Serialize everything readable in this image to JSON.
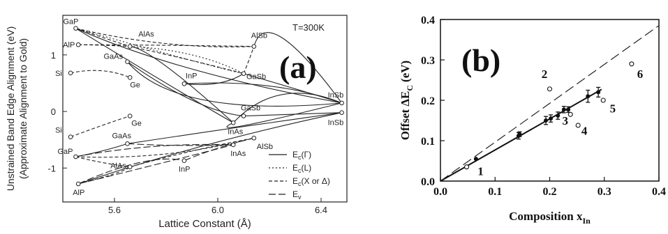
{
  "chart_data": [
    {
      "panel_label": "(a)",
      "type": "line",
      "xlabel": "Lattice Constant (Å)",
      "ylabel_line1": "Unstrained Band Edge Alignment (eV)",
      "ylabel_line2": "(Approximate Alignment to Gold)",
      "annotation": "T=300K",
      "xlim": [
        5.4,
        6.5
      ],
      "ylim": [
        -1.6,
        1.7
      ],
      "xticks": [
        {
          "value": 5.6,
          "label": "5.6"
        },
        {
          "value": 6.0,
          "label": "6.0"
        },
        {
          "value": 6.4,
          "label": "6.4"
        }
      ],
      "yticks": [
        {
          "value": -1,
          "label": "-1"
        },
        {
          "value": 0,
          "label": "0"
        },
        {
          "value": 1,
          "label": "1"
        }
      ],
      "legend_placement": "bottom-right",
      "legend": [
        {
          "label": "Ec(Γ)",
          "main": "E",
          "sub": "c",
          "rest": "(Γ)",
          "style": "solid"
        },
        {
          "label": "Ec(L)",
          "main": "E",
          "sub": "c",
          "rest": "(L)",
          "style": "dotted"
        },
        {
          "label": "Ec(X or Δ)",
          "main": "E",
          "sub": "c",
          "rest": "(X or Δ)",
          "style": "shortdash"
        },
        {
          "label": "Ev",
          "main": "E",
          "sub": "v",
          "rest": "",
          "style": "longdash"
        }
      ],
      "points": [
        {
          "label": "GaP",
          "x": 5.45,
          "y": 1.47,
          "lx": -18,
          "ly": -6
        },
        {
          "label": "AlAs",
          "x": 5.66,
          "y": 1.15,
          "lx": 12,
          "ly": -14
        },
        {
          "label": "AlP",
          "x": 5.46,
          "y": 1.18,
          "lx": -22,
          "ly": 4
        },
        {
          "label": "AlSb",
          "x": 6.14,
          "y": 1.15,
          "lx": -4,
          "ly": -12
        },
        {
          "label": "GaAs",
          "x": 5.65,
          "y": 0.88,
          "lx": -34,
          "ly": -4
        },
        {
          "label": "InP",
          "x": 5.87,
          "y": 0.49,
          "lx": 2,
          "ly": -8
        },
        {
          "label": "GaSb",
          "x": 6.1,
          "y": 0.67,
          "lx": 4,
          "ly": 8
        },
        {
          "label": "Si",
          "x": 5.43,
          "y": 0.68,
          "lx": -22,
          "ly": 4
        },
        {
          "label": "Ge",
          "x": 5.66,
          "y": 0.6,
          "lx": 0,
          "ly": 14
        },
        {
          "label": "InSb",
          "x": 6.48,
          "y": 0.15,
          "lx": -20,
          "ly": -8
        },
        {
          "label": "InAs",
          "x": 6.06,
          "y": -0.2,
          "lx": -8,
          "ly": 16
        },
        {
          "label": "GaSb",
          "x": 6.1,
          "y": -0.08,
          "lx": -4,
          "ly": -8
        },
        {
          "label": "Ge",
          "x": 5.66,
          "y": -0.08,
          "lx": 2,
          "ly": 14
        },
        {
          "label": "Si",
          "x": 5.43,
          "y": -0.45,
          "lx": -22,
          "ly": -6
        },
        {
          "label": "InSb",
          "x": 6.48,
          "y": -0.02,
          "lx": -20,
          "ly": 18
        },
        {
          "label": "GaAs",
          "x": 5.65,
          "y": -0.57,
          "lx": -22,
          "ly": -8
        },
        {
          "label": "GaP",
          "x": 5.45,
          "y": -0.8,
          "lx": -26,
          "ly": -4
        },
        {
          "label": "AlAs",
          "x": 5.66,
          "y": -0.98,
          "lx": -28,
          "ly": 2
        },
        {
          "label": "InP",
          "x": 5.87,
          "y": -0.87,
          "lx": -8,
          "ly": 16
        },
        {
          "label": "InAs",
          "x": 6.06,
          "y": -0.59,
          "lx": -4,
          "ly": 16
        },
        {
          "label": "AlSb",
          "x": 6.14,
          "y": -0.47,
          "lx": 4,
          "ly": 16
        },
        {
          "label": "AlP",
          "x": 5.46,
          "y": -1.28,
          "lx": -8,
          "ly": 16
        }
      ],
      "curves": [
        {
          "style": "solid",
          "x": [
            5.45,
            5.8,
            6.06
          ],
          "y": [
            1.47,
            0.5,
            -0.2
          ]
        },
        {
          "style": "solid",
          "x": [
            5.45,
            5.9,
            6.48
          ],
          "y": [
            1.47,
            0.75,
            0.15
          ]
        },
        {
          "style": "solid",
          "x": [
            5.65,
            5.95,
            6.48
          ],
          "y": [
            0.88,
            0.2,
            0.15
          ]
        },
        {
          "style": "solid",
          "x": [
            5.65,
            5.9,
            6.1
          ],
          "y": [
            0.88,
            0.2,
            -0.08
          ]
        },
        {
          "style": "solid",
          "x": [
            5.66,
            5.8,
            6.06
          ],
          "y": [
            1.15,
            0.8,
            -0.2
          ]
        },
        {
          "style": "solid",
          "x": [
            5.87,
            6.2,
            6.48
          ],
          "y": [
            0.49,
            0.45,
            0.15
          ]
        },
        {
          "style": "solid",
          "x": [
            5.87,
            6.0,
            6.1
          ],
          "y": [
            0.49,
            0.5,
            0.67
          ]
        },
        {
          "style": "solid",
          "x": [
            6.06,
            6.1,
            6.48
          ],
          "y": [
            -0.2,
            -0.25,
            0.15
          ]
        },
        {
          "style": "solid",
          "x": [
            6.06,
            6.25,
            6.48
          ],
          "y": [
            -0.2,
            0.3,
            0.15
          ]
        },
        {
          "style": "solid",
          "x": [
            6.14,
            6.25,
            6.48
          ],
          "y": [
            1.15,
            1.3,
            0.15
          ]
        },
        {
          "style": "solid",
          "x": [
            6.1,
            6.3,
            6.48
          ],
          "y": [
            0.67,
            0.4,
            0.15
          ]
        },
        {
          "style": "solid",
          "x": [
            5.45,
            5.55,
            5.65
          ],
          "y": [
            -0.8,
            -0.7,
            -0.57
          ]
        },
        {
          "style": "solid",
          "x": [
            5.65,
            6.05,
            6.48
          ],
          "y": [
            -0.57,
            -0.3,
            -0.02
          ]
        },
        {
          "style": "solid",
          "x": [
            5.46,
            5.95,
            6.48
          ],
          "y": [
            -1.28,
            -0.6,
            -0.02
          ]
        },
        {
          "style": "solid",
          "x": [
            6.1,
            6.3,
            6.48
          ],
          "y": [
            -0.08,
            -0.05,
            -0.02
          ]
        },
        {
          "style": "shortdash",
          "x": [
            5.45,
            5.56,
            5.66
          ],
          "y": [
            1.47,
            1.3,
            1.15
          ]
        },
        {
          "style": "shortdash",
          "x": [
            5.45,
            5.8,
            6.14
          ],
          "y": [
            1.47,
            1.2,
            1.15
          ]
        },
        {
          "style": "shortdash",
          "x": [
            5.46,
            5.8,
            6.14
          ],
          "y": [
            1.18,
            1.17,
            1.15
          ]
        },
        {
          "style": "shortdash",
          "x": [
            5.46,
            5.56,
            5.66
          ],
          "y": [
            1.18,
            1.17,
            1.15
          ]
        },
        {
          "style": "shortdash",
          "x": [
            5.66,
            5.9,
            6.1
          ],
          "y": [
            1.15,
            0.9,
            0.67
          ]
        },
        {
          "style": "shortdash",
          "x": [
            6.1,
            6.12,
            6.14
          ],
          "y": [
            0.67,
            0.9,
            1.15
          ]
        },
        {
          "style": "shortdash",
          "x": [
            5.43,
            5.55,
            5.66
          ],
          "y": [
            0.68,
            0.72,
            0.6
          ]
        },
        {
          "style": "shortdash",
          "x": [
            5.43,
            5.55,
            5.66
          ],
          "y": [
            -0.45,
            -0.25,
            -0.08
          ]
        },
        {
          "style": "shortdash",
          "x": [
            5.45,
            5.55,
            5.66
          ],
          "y": [
            -0.8,
            -0.9,
            -0.98
          ]
        },
        {
          "style": "shortdash",
          "x": [
            5.66,
            5.9,
            6.14
          ],
          "y": [
            -0.98,
            -0.7,
            -0.47
          ]
        },
        {
          "style": "shortdash",
          "x": [
            5.45,
            5.8,
            6.14
          ],
          "y": [
            -0.8,
            -0.75,
            -0.47
          ]
        },
        {
          "style": "shortdash",
          "x": [
            5.46,
            5.6,
            5.66
          ],
          "y": [
            -1.28,
            -1.1,
            -0.98
          ]
        },
        {
          "style": "dotted",
          "x": [
            5.45,
            5.9,
            6.1
          ],
          "y": [
            1.47,
            0.9,
            0.67
          ]
        },
        {
          "style": "dotted",
          "x": [
            5.66,
            5.9,
            6.1
          ],
          "y": [
            1.15,
            1.0,
            0.67
          ]
        },
        {
          "style": "longdash",
          "x": [
            5.45,
            5.75,
            6.06
          ],
          "y": [
            -0.8,
            -0.62,
            -0.59
          ]
        },
        {
          "style": "longdash",
          "x": [
            5.46,
            5.75,
            6.06
          ],
          "y": [
            -1.28,
            -0.95,
            -0.59
          ]
        },
        {
          "style": "longdash",
          "x": [
            5.46,
            5.7,
            5.87
          ],
          "y": [
            -1.28,
            -0.9,
            -0.87
          ]
        },
        {
          "style": "longdash",
          "x": [
            5.87,
            6.0,
            6.14
          ],
          "y": [
            -0.87,
            -0.65,
            -0.47
          ]
        },
        {
          "style": "longdash",
          "x": [
            5.65,
            5.85,
            6.06
          ],
          "y": [
            -0.57,
            -0.6,
            -0.59
          ]
        }
      ]
    },
    {
      "panel_label": "(b)",
      "type": "scatter",
      "xlabel": "Composition x",
      "xlabel_sub": "In",
      "ylabel_main": "Offset ΔE",
      "ylabel_sub": "C",
      "ylabel_unit": "(eV)",
      "xlim": [
        0.0,
        0.4
      ],
      "ylim": [
        0.0,
        0.4
      ],
      "xticks": [
        {
          "value": 0.0,
          "label": "0.0"
        },
        {
          "value": 0.1,
          "label": "0.1"
        },
        {
          "value": 0.2,
          "label": "0.2"
        },
        {
          "value": 0.3,
          "label": "0.3"
        },
        {
          "value": 0.4,
          "label": "0.4"
        }
      ],
      "yticks": [
        {
          "value": 0.0,
          "label": "0.0"
        },
        {
          "value": 0.1,
          "label": "0.1"
        },
        {
          "value": 0.2,
          "label": "0.2"
        },
        {
          "value": 0.3,
          "label": "0.3"
        },
        {
          "value": 0.4,
          "label": "0.4"
        }
      ],
      "dashed_line": {
        "x": [
          0.0,
          0.4
        ],
        "y": [
          0.0,
          0.385
        ]
      },
      "fit_line": {
        "x": [
          0.0,
          0.295
        ],
        "y": [
          0.0,
          0.227
        ]
      },
      "filled_points": [
        {
          "x": 0.065,
          "y": 0.055,
          "err": 0.0
        },
        {
          "x": 0.143,
          "y": 0.112,
          "err": 0.008
        },
        {
          "x": 0.145,
          "y": 0.116,
          "err": 0.006
        },
        {
          "x": 0.193,
          "y": 0.15,
          "err": 0.01
        },
        {
          "x": 0.202,
          "y": 0.155,
          "err": 0.009
        },
        {
          "x": 0.215,
          "y": 0.162,
          "err": 0.009
        },
        {
          "x": 0.226,
          "y": 0.177,
          "err": 0.008
        },
        {
          "x": 0.234,
          "y": 0.177,
          "err": 0.007
        },
        {
          "x": 0.27,
          "y": 0.21,
          "err": 0.015
        },
        {
          "x": 0.289,
          "y": 0.22,
          "err": 0.012
        }
      ],
      "open_points": [
        {
          "x": 0.048,
          "y": 0.035
        },
        {
          "x": 0.2,
          "y": 0.228
        },
        {
          "x": 0.238,
          "y": 0.165
        },
        {
          "x": 0.252,
          "y": 0.138
        },
        {
          "x": 0.298,
          "y": 0.2
        },
        {
          "x": 0.35,
          "y": 0.29
        }
      ],
      "number_labels": [
        {
          "text": "1",
          "x": 0.068,
          "y": 0.015
        },
        {
          "text": "2",
          "x": 0.185,
          "y": 0.255
        },
        {
          "text": "3",
          "x": 0.223,
          "y": 0.14
        },
        {
          "text": "4",
          "x": 0.258,
          "y": 0.115
        },
        {
          "text": "5",
          "x": 0.31,
          "y": 0.17
        },
        {
          "text": "6",
          "x": 0.36,
          "y": 0.255
        }
      ]
    }
  ]
}
